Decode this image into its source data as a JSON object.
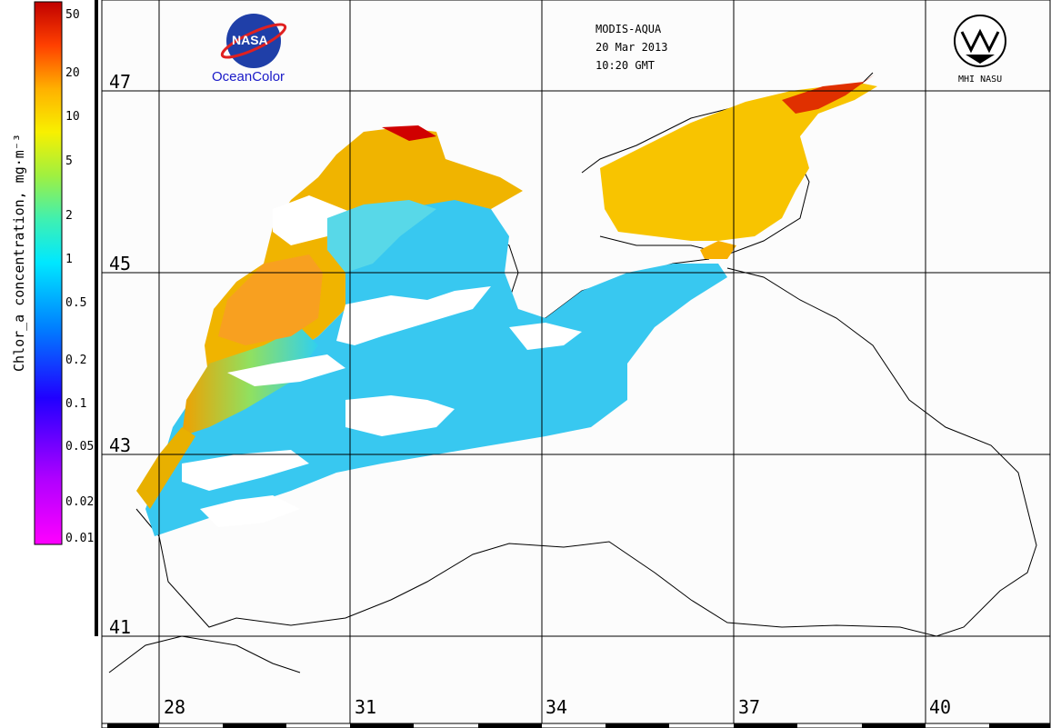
{
  "colorbar": {
    "title": "Chlor_a concentration, mg·m⁻³",
    "ticks": [
      "50",
      "20",
      "10",
      "5",
      "2",
      "1",
      "0.5",
      "0.2",
      "0.1",
      "0.05",
      "0.02",
      "0.01"
    ],
    "colors": [
      "#ff00ff",
      "#8a00ff",
      "#2000ff",
      "#0070ff",
      "#00d0ff",
      "#00f0a0",
      "#a0f040",
      "#f0f000",
      "#ffb000",
      "#ff5000",
      "#e00000",
      "#a00000"
    ]
  },
  "header": {
    "sensor": "MODIS-AQUA",
    "date": "20 Mar 2013",
    "time": "10:20 GMT"
  },
  "logos": {
    "nasa_text": "NASA",
    "oceancolor": "OceanColor",
    "mhi": "MHI NASU"
  },
  "map": {
    "latitudes": [
      "47",
      "45",
      "43",
      "41"
    ],
    "longitudes": [
      "28",
      "31",
      "34",
      "37",
      "40"
    ],
    "ocean_color": "#fcfcfc",
    "grid_color": "#000000"
  }
}
